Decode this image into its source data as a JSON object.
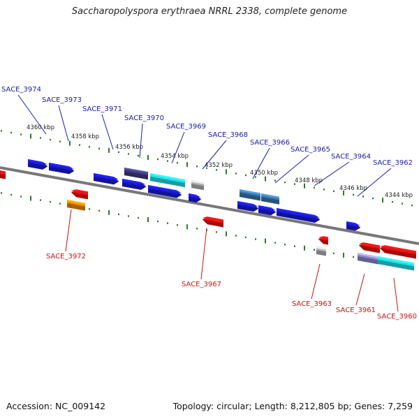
{
  "title": "Saccharopolyspora erythraea NRRL 2338, complete genome",
  "footer": {
    "accession": "Accession: NC_009142",
    "summary": "Topology: circular; Length: 8,212,805 bp; Genes: 7,259"
  },
  "colors": {
    "backbone": "#777777",
    "ticks": "#2a7a2a",
    "label_forward": "#1a1aaa",
    "label_reverse": "#cc1111",
    "gene_blue": "#1a1adb",
    "gene_red": "#ee1111",
    "gene_cyan": "#22e0e6",
    "gene_navy": "#3d3c80",
    "gene_steel": "#3b78ad",
    "gene_grey": "#b2b2b2",
    "gene_orange": "#ee8800",
    "gene_lavender": "#8c89c9"
  },
  "kbp_marks": [
    "4360 kbp",
    "4358 kbp",
    "4356 kbp",
    "4354 kbp",
    "4352 kbp",
    "4350 kbp",
    "4348 kbp",
    "4346 kbp",
    "4344 kbp"
  ],
  "forward_labels": [
    "SACE_3974",
    "SACE_3973",
    "SACE_3971",
    "SACE_3970",
    "SACE_3969",
    "SACE_3968",
    "SACE_3966",
    "SACE_3965",
    "SACE_3964",
    "SACE_3962"
  ],
  "reverse_labels": [
    "SACE_3972",
    "SACE_3967",
    "SACE_3963",
    "SACE_3961",
    "SACE_3960"
  ]
}
